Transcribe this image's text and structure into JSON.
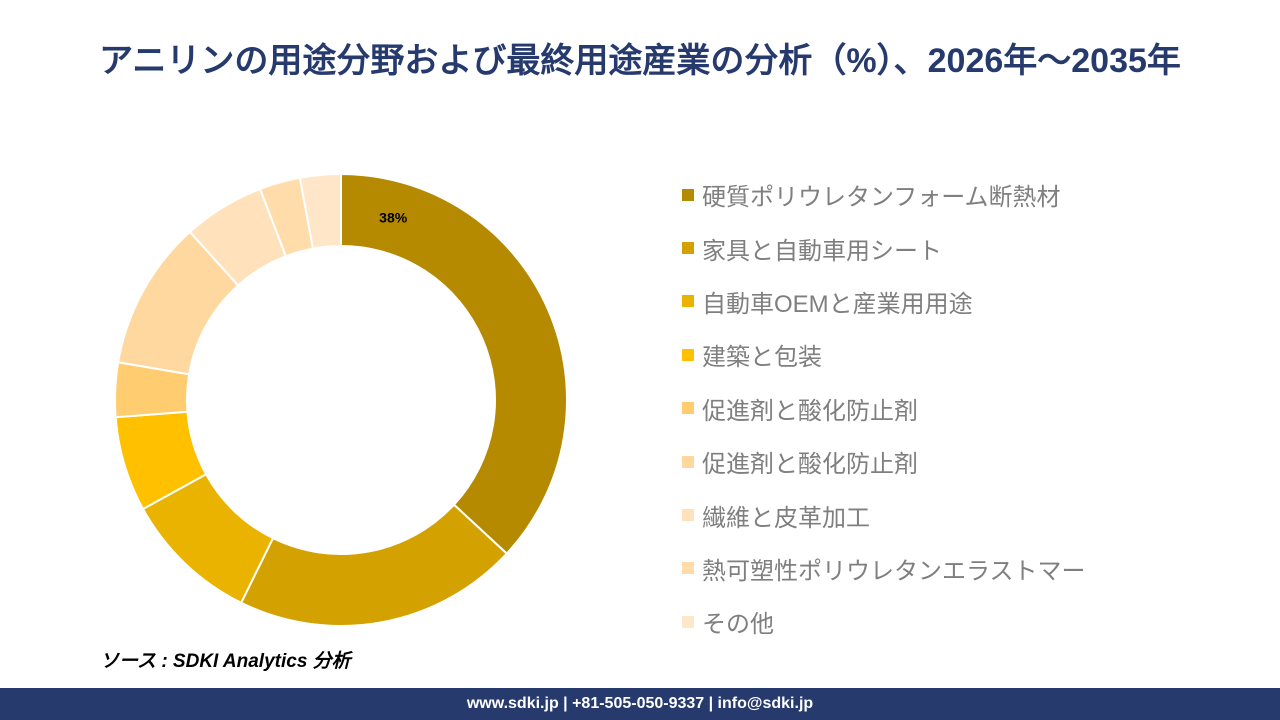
{
  "header": {
    "title": "アニリンの用途分野および最終用途産業の分析（%）、2026年～2035年"
  },
  "chart_data": {
    "type": "pie",
    "style": "donut",
    "legend_position": "right",
    "categories": [
      "硬質ポリウレタンフォーム断熱材",
      "家具と自動車用シート",
      "自動車OEMと産業用用途",
      "建築と包装",
      "促進剤と酸化防止剤",
      "促進剤と酸化防止剤",
      "繊維と皮革加工",
      "熱可塑性ポリウレタンエラストマー",
      "その他"
    ],
    "values": [
      38,
      21,
      10,
      7,
      4,
      11,
      6,
      3,
      3
    ],
    "data_labels": [
      "38%",
      "",
      "",
      "",
      "",
      "",
      "",
      "",
      ""
    ],
    "colors": [
      "#b58a00",
      "#d3a200",
      "#e9b300",
      "#ffc000",
      "#ffcc70",
      "#ffd8a0",
      "#ffe2bc",
      "#ffdcaa",
      "#ffe6c8"
    ]
  },
  "source": "ソース : SDKI Analytics 分析",
  "footer": {
    "contact": "www.sdki.jp | +81-505-050-9337 | info@sdki.jp"
  }
}
